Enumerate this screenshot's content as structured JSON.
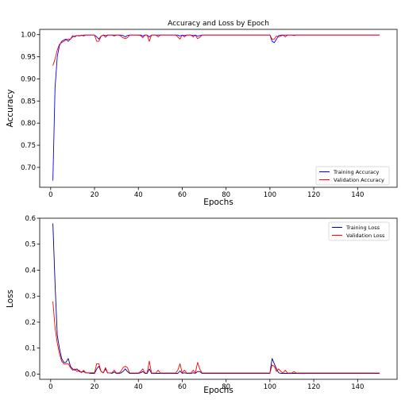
{
  "chart_data": [
    {
      "type": "line",
      "title": "Accuracy and Loss by Epoch",
      "xlabel": "Epochs",
      "ylabel": "Accuracy",
      "xlim": [
        -5,
        158
      ],
      "ylim": [
        0.655,
        1.012
      ],
      "xticks": [
        0,
        20,
        40,
        60,
        80,
        100,
        120,
        140
      ],
      "yticks": [
        0.7,
        0.75,
        0.8,
        0.85,
        0.9,
        0.95,
        1.0
      ],
      "ytick_labels": [
        "0.70",
        "0.75",
        "0.80",
        "0.85",
        "0.90",
        "0.95",
        "1.00"
      ],
      "grid": false,
      "legend_position": "bottom-right",
      "series": [
        {
          "name": "Training Accuracy",
          "color": "#0000ff",
          "x": [
            1,
            2,
            3,
            4,
            5,
            6,
            7,
            8,
            9,
            10,
            11,
            12,
            13,
            14,
            15,
            16,
            17,
            18,
            19,
            20,
            21,
            22,
            23,
            24,
            25,
            26,
            27,
            28,
            29,
            30,
            31,
            32,
            33,
            34,
            35,
            36,
            37,
            38,
            39,
            40,
            41,
            42,
            43,
            44,
            45,
            46,
            47,
            48,
            49,
            50,
            51,
            52,
            53,
            54,
            55,
            56,
            57,
            58,
            59,
            60,
            61,
            62,
            63,
            64,
            65,
            66,
            67,
            68,
            69,
            70,
            71,
            72,
            73,
            74,
            75,
            76,
            77,
            78,
            79,
            80,
            85,
            90,
            95,
            100,
            101,
            102,
            103,
            104,
            105,
            106,
            107,
            108,
            109,
            110,
            111,
            112,
            113,
            114,
            115,
            116,
            117,
            118,
            119,
            120,
            125,
            130,
            135,
            140,
            145,
            150
          ],
          "y": [
            0.67,
            0.88,
            0.95,
            0.975,
            0.985,
            0.988,
            0.99,
            0.985,
            0.99,
            0.995,
            0.997,
            0.998,
            0.998,
            0.998,
            0.999,
            0.999,
            0.999,
            0.999,
            0.999,
            0.999,
            0.995,
            0.99,
            0.997,
            0.999,
            0.998,
            0.999,
            0.999,
            0.999,
            0.999,
            0.999,
            0.999,
            0.999,
            0.998,
            0.995,
            0.998,
            0.999,
            0.999,
            0.999,
            0.999,
            0.999,
            0.999,
            0.997,
            0.999,
            0.999,
            0.995,
            0.999,
            0.999,
            0.999,
            0.999,
            0.999,
            0.999,
            0.999,
            0.999,
            0.999,
            0.999,
            0.999,
            0.999,
            0.999,
            0.997,
            0.999,
            0.998,
            0.999,
            0.999,
            0.999,
            0.998,
            0.999,
            0.997,
            0.998,
            0.999,
            0.999,
            0.999,
            0.999,
            0.999,
            0.999,
            0.999,
            0.999,
            0.999,
            0.999,
            0.999,
            0.999,
            0.999,
            0.999,
            0.999,
            0.999,
            0.985,
            0.982,
            0.99,
            0.998,
            0.999,
            0.999,
            0.999,
            0.999,
            0.999,
            0.999,
            0.999,
            0.999,
            0.999,
            0.999,
            0.999,
            0.999,
            0.999,
            0.999,
            0.999,
            0.999,
            0.999,
            0.999,
            0.999,
            0.999,
            0.999,
            0.999
          ]
        },
        {
          "name": "Validation Accuracy",
          "color": "#ff0000",
          "x": [
            1,
            2,
            3,
            4,
            5,
            6,
            7,
            8,
            9,
            10,
            11,
            12,
            13,
            14,
            15,
            16,
            17,
            18,
            19,
            20,
            21,
            22,
            23,
            24,
            25,
            26,
            27,
            28,
            29,
            30,
            31,
            32,
            33,
            34,
            35,
            36,
            37,
            38,
            39,
            40,
            41,
            42,
            43,
            44,
            45,
            46,
            47,
            48,
            49,
            50,
            51,
            52,
            53,
            54,
            55,
            56,
            57,
            58,
            59,
            60,
            61,
            62,
            63,
            64,
            65,
            66,
            67,
            68,
            69,
            70,
            71,
            72,
            73,
            74,
            75,
            76,
            77,
            78,
            79,
            80,
            85,
            90,
            95,
            100,
            101,
            102,
            103,
            104,
            105,
            106,
            107,
            108,
            109,
            110,
            111,
            112,
            113,
            114,
            115,
            116,
            117,
            118,
            119,
            120,
            125,
            130,
            135,
            140,
            145,
            150
          ],
          "y": [
            0.93,
            0.945,
            0.965,
            0.978,
            0.982,
            0.985,
            0.988,
            0.99,
            0.99,
            0.998,
            0.995,
            0.998,
            0.997,
            0.999,
            0.997,
            0.999,
            0.999,
            0.999,
            0.999,
            0.999,
            0.985,
            0.985,
            0.997,
            0.999,
            0.994,
            0.999,
            0.999,
            0.999,
            0.997,
            0.999,
            0.999,
            0.997,
            0.993,
            0.991,
            0.993,
            0.999,
            0.999,
            0.999,
            0.999,
            0.999,
            0.998,
            0.993,
            0.999,
            0.999,
            0.985,
            0.999,
            0.999,
            0.999,
            0.995,
            0.999,
            0.999,
            0.999,
            0.999,
            0.999,
            0.999,
            0.999,
            0.999,
            0.995,
            0.99,
            0.999,
            0.995,
            0.999,
            0.999,
            0.999,
            0.995,
            0.999,
            0.991,
            0.994,
            0.999,
            0.999,
            0.999,
            0.999,
            0.999,
            0.999,
            0.999,
            0.999,
            0.999,
            0.999,
            0.999,
            0.999,
            0.999,
            0.999,
            0.999,
            0.999,
            0.99,
            0.99,
            0.997,
            0.995,
            0.997,
            0.999,
            0.995,
            0.999,
            0.999,
            0.999,
            0.998,
            0.999,
            0.999,
            0.999,
            0.999,
            0.999,
            0.999,
            0.999,
            0.999,
            0.999,
            0.999,
            0.999,
            0.999,
            0.999,
            0.999,
            0.999
          ]
        }
      ]
    },
    {
      "type": "line",
      "title": "",
      "xlabel": "Epochs",
      "ylabel": "Loss",
      "xlim": [
        -5,
        158
      ],
      "ylim": [
        -0.02,
        0.6
      ],
      "xticks": [
        0,
        20,
        40,
        60,
        80,
        100,
        120,
        140
      ],
      "yticks": [
        0.0,
        0.1,
        0.2,
        0.3,
        0.4,
        0.5,
        0.6
      ],
      "ytick_labels": [
        "0.0",
        "0.1",
        "0.2",
        "0.3",
        "0.4",
        "0.5",
        "0.6"
      ],
      "grid": false,
      "legend_position": "top-right",
      "series": [
        {
          "name": "Training Loss",
          "color": "#00008b",
          "x": [
            1,
            2,
            3,
            4,
            5,
            6,
            7,
            8,
            9,
            10,
            11,
            12,
            13,
            14,
            15,
            16,
            17,
            18,
            19,
            20,
            21,
            22,
            23,
            24,
            25,
            26,
            27,
            28,
            29,
            30,
            31,
            32,
            33,
            34,
            35,
            36,
            37,
            38,
            39,
            40,
            41,
            42,
            43,
            44,
            45,
            46,
            47,
            48,
            49,
            50,
            51,
            52,
            53,
            54,
            55,
            56,
            57,
            58,
            59,
            60,
            61,
            62,
            63,
            64,
            65,
            66,
            67,
            68,
            69,
            70,
            71,
            72,
            73,
            74,
            75,
            76,
            77,
            78,
            79,
            80,
            85,
            90,
            95,
            100,
            101,
            102,
            103,
            104,
            105,
            106,
            107,
            108,
            109,
            110,
            111,
            112,
            113,
            114,
            115,
            116,
            117,
            118,
            119,
            120,
            125,
            130,
            135,
            140,
            145,
            150
          ],
          "y": [
            0.58,
            0.35,
            0.15,
            0.1,
            0.06,
            0.045,
            0.045,
            0.06,
            0.03,
            0.02,
            0.015,
            0.02,
            0.01,
            0.008,
            0.01,
            0.005,
            0.005,
            0.003,
            0.003,
            0.003,
            0.02,
            0.03,
            0.01,
            0.005,
            0.02,
            0.004,
            0.004,
            0.003,
            0.008,
            0.003,
            0.003,
            0.004,
            0.01,
            0.02,
            0.01,
            0.003,
            0.003,
            0.003,
            0.003,
            0.003,
            0.005,
            0.01,
            0.003,
            0.003,
            0.02,
            0.003,
            0.003,
            0.003,
            0.003,
            0.003,
            0.003,
            0.003,
            0.003,
            0.003,
            0.003,
            0.003,
            0.003,
            0.003,
            0.012,
            0.003,
            0.005,
            0.003,
            0.003,
            0.003,
            0.005,
            0.003,
            0.01,
            0.01,
            0.003,
            0.003,
            0.003,
            0.003,
            0.003,
            0.003,
            0.003,
            0.003,
            0.003,
            0.003,
            0.003,
            0.003,
            0.003,
            0.003,
            0.003,
            0.003,
            0.06,
            0.04,
            0.02,
            0.005,
            0.003,
            0.003,
            0.003,
            0.003,
            0.003,
            0.003,
            0.003,
            0.003,
            0.003,
            0.003,
            0.003,
            0.003,
            0.003,
            0.003,
            0.003,
            0.003,
            0.003,
            0.003,
            0.003,
            0.003,
            0.003,
            0.003
          ]
        },
        {
          "name": "Validation Loss",
          "color": "#ff0000",
          "x": [
            1,
            2,
            3,
            4,
            5,
            6,
            7,
            8,
            9,
            10,
            11,
            12,
            13,
            14,
            15,
            16,
            17,
            18,
            19,
            20,
            21,
            22,
            23,
            24,
            25,
            26,
            27,
            28,
            29,
            30,
            31,
            32,
            33,
            34,
            35,
            36,
            37,
            38,
            39,
            40,
            41,
            42,
            43,
            44,
            45,
            46,
            47,
            48,
            49,
            50,
            51,
            52,
            53,
            54,
            55,
            56,
            57,
            58,
            59,
            60,
            61,
            62,
            63,
            64,
            65,
            66,
            67,
            68,
            69,
            70,
            71,
            72,
            73,
            74,
            75,
            76,
            77,
            78,
            79,
            80,
            85,
            90,
            95,
            100,
            101,
            102,
            103,
            104,
            105,
            106,
            107,
            108,
            109,
            110,
            111,
            112,
            113,
            114,
            115,
            116,
            117,
            118,
            119,
            120,
            125,
            130,
            135,
            140,
            145,
            150
          ],
          "y": [
            0.28,
            0.18,
            0.12,
            0.08,
            0.05,
            0.04,
            0.04,
            0.04,
            0.025,
            0.015,
            0.02,
            0.01,
            0.015,
            0.005,
            0.015,
            0.005,
            0.005,
            0.005,
            0.005,
            0.005,
            0.04,
            0.04,
            0.01,
            0.005,
            0.025,
            0.004,
            0.004,
            0.005,
            0.015,
            0.004,
            0.004,
            0.01,
            0.025,
            0.03,
            0.025,
            0.004,
            0.004,
            0.004,
            0.004,
            0.004,
            0.01,
            0.02,
            0.004,
            0.004,
            0.05,
            0.004,
            0.004,
            0.004,
            0.015,
            0.004,
            0.004,
            0.004,
            0.004,
            0.004,
            0.004,
            0.004,
            0.004,
            0.015,
            0.04,
            0.004,
            0.015,
            0.004,
            0.004,
            0.004,
            0.015,
            0.004,
            0.045,
            0.02,
            0.004,
            0.004,
            0.004,
            0.004,
            0.004,
            0.004,
            0.004,
            0.004,
            0.004,
            0.004,
            0.004,
            0.004,
            0.004,
            0.004,
            0.004,
            0.004,
            0.035,
            0.03,
            0.01,
            0.02,
            0.01,
            0.004,
            0.015,
            0.004,
            0.004,
            0.004,
            0.01,
            0.004,
            0.004,
            0.004,
            0.004,
            0.004,
            0.004,
            0.004,
            0.004,
            0.004,
            0.004,
            0.004,
            0.004,
            0.004,
            0.004,
            0.004
          ]
        }
      ]
    }
  ]
}
